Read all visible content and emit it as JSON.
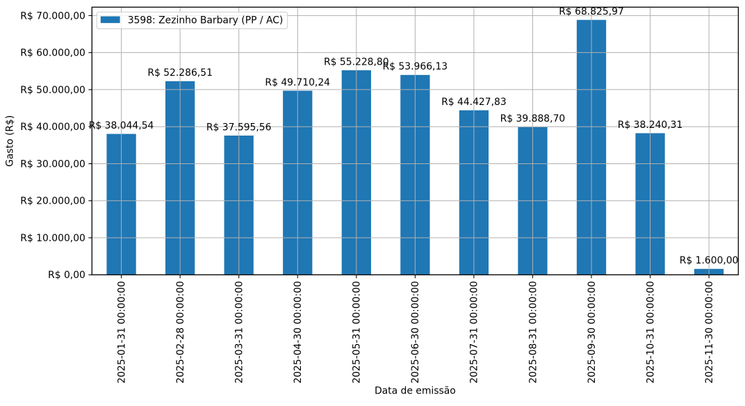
{
  "chart_data": {
    "type": "bar",
    "title": "",
    "xlabel": "Data de emissão",
    "ylabel": "Gasto (R$)",
    "legend": {
      "label": "3598: Zezinho Barbary (PP / AC)",
      "position": "upper left",
      "swatch_color": "#1f77b4"
    },
    "categories": [
      "2025-01-31 00:00:00",
      "2025-02-28 00:00:00",
      "2025-03-31 00:00:00",
      "2025-04-30 00:00:00",
      "2025-05-31 00:00:00",
      "2025-06-30 00:00:00",
      "2025-07-31 00:00:00",
      "2025-08-31 00:00:00",
      "2025-09-30 00:00:00",
      "2025-10-31 00:00:00",
      "2025-11-30 00:00:00"
    ],
    "values": [
      38044.54,
      52286.51,
      37595.56,
      49710.24,
      55228.8,
      53966.13,
      44427.83,
      39888.7,
      68825.97,
      38240.31,
      1600.0
    ],
    "bar_labels": [
      "R$ 38.044,54",
      "R$ 52.286,51",
      "R$ 37.595,56",
      "R$ 49.710,24",
      "R$ 55.228,80",
      "R$ 53.966,13",
      "R$ 44.427,83",
      "R$ 39.888,70",
      "R$ 68.825,97",
      "R$ 38.240,31",
      "R$ 1.600,00"
    ],
    "y_ticks": [
      0,
      10000,
      20000,
      30000,
      40000,
      50000,
      60000,
      70000
    ],
    "y_tick_labels": [
      "R$ 0,00",
      "R$ 10.000,00",
      "R$ 20.000,00",
      "R$ 30.000,00",
      "R$ 40.000,00",
      "R$ 50.000,00",
      "R$ 60.000,00",
      "R$ 70.000,00"
    ],
    "ylim": [
      0,
      72267.27
    ],
    "grid": true,
    "bar_color": "#1f77b4",
    "grid_color": "#b0b0b0",
    "spine_color": "#000000",
    "text_color": "#000000"
  }
}
